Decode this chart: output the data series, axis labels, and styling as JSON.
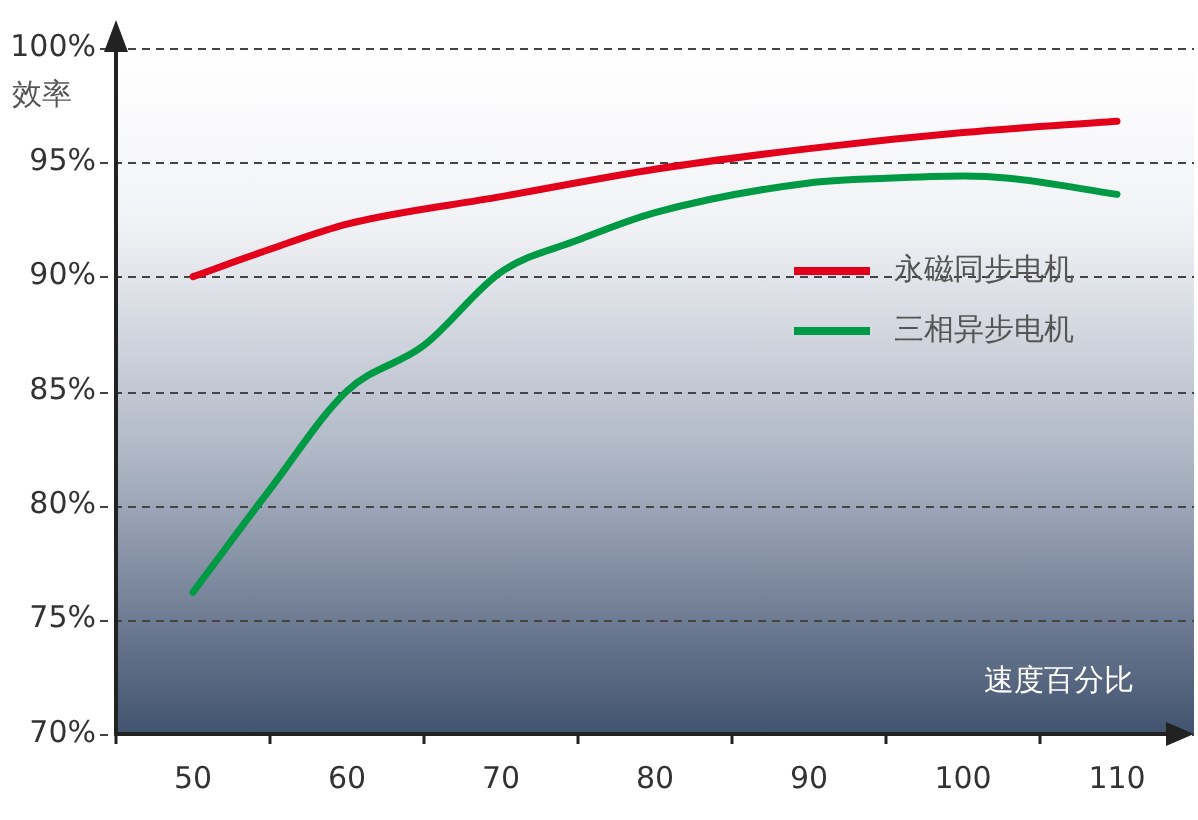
{
  "chart_data": {
    "type": "line",
    "xlabel": "速度百分比",
    "ylabel": "效率",
    "xlim": [
      45,
      115
    ],
    "xticks": [
      {
        "value": 45,
        "label": null
      },
      50,
      {
        "value": 55,
        "label": null
      },
      60,
      {
        "value": 65,
        "label": null
      },
      70,
      {
        "value": 75,
        "label": null
      },
      80,
      {
        "value": 85,
        "label": null
      },
      90,
      {
        "value": 95,
        "label": null
      },
      100,
      {
        "value": 105,
        "label": null
      },
      110
    ],
    "ylim": [
      70,
      100
    ],
    "yticks": [
      {
        "value": 70,
        "label": "70%"
      },
      {
        "value": 75,
        "label": "75%"
      },
      {
        "value": 80,
        "label": "80%"
      },
      {
        "value": 85,
        "label": "85%"
      },
      {
        "value": 90,
        "label": "90%"
      },
      {
        "value": 95,
        "label": "95%"
      },
      {
        "value": 100,
        "label": "100%"
      }
    ],
    "grid": "y",
    "legend": "right",
    "marker": "none",
    "line_style": "solid",
    "series": [
      {
        "name": "永磁同步电机",
        "color": "#e2001a",
        "x": [
          50,
          55,
          60,
          70,
          80,
          90,
          100,
          110
        ],
        "values": [
          90,
          91.2,
          92.3,
          93.5,
          94.7,
          95.6,
          96.3,
          96.8
        ]
      },
      {
        "name": "三相异步电机",
        "color": "#009a44",
        "x": [
          50,
          55,
          60,
          65,
          70,
          75,
          80,
          90,
          95,
          100,
          103,
          110
        ],
        "values": [
          76.2,
          80.7,
          85,
          87,
          90.2,
          91.6,
          92.8,
          94.1,
          94.3,
          94.4,
          94.3,
          93.6
        ]
      }
    ]
  }
}
